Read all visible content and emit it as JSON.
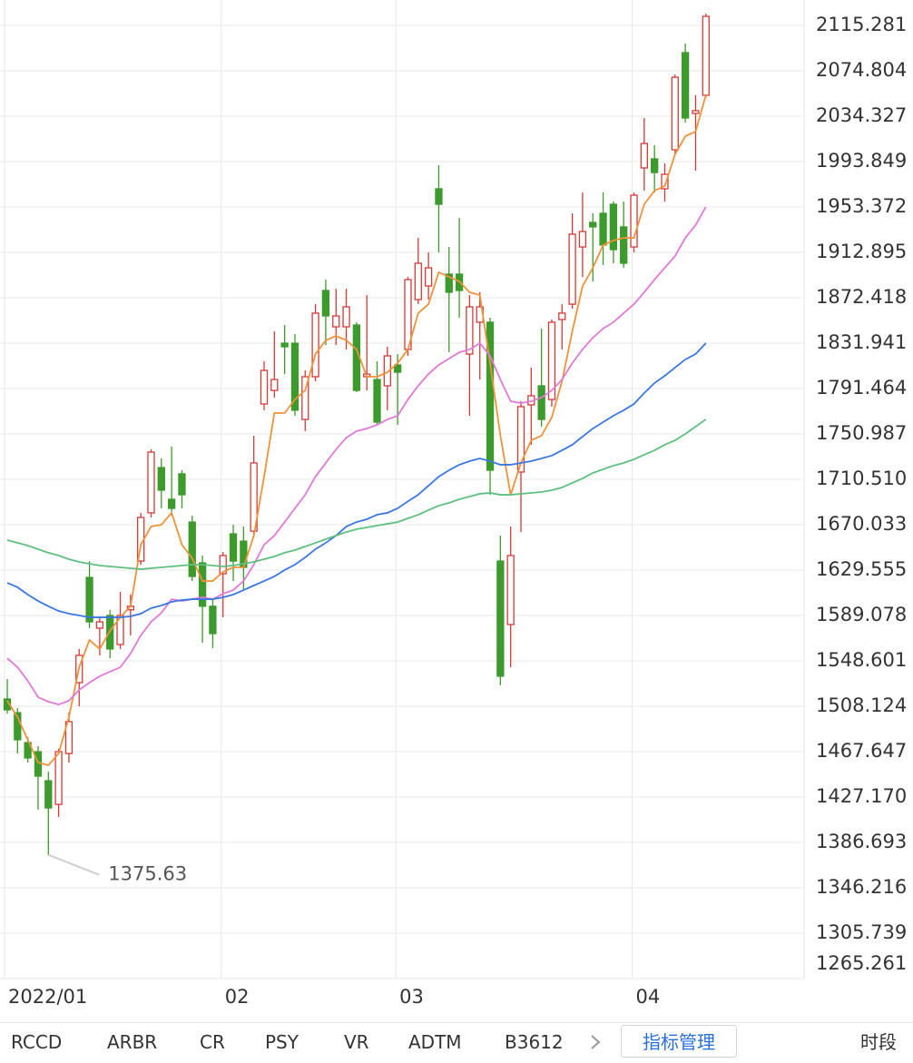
{
  "chart_data": {
    "type": "candlestick",
    "categories": [
      "2022/01",
      null,
      null,
      null,
      null,
      null,
      null,
      null,
      null,
      null,
      null,
      null,
      null,
      null,
      null,
      null,
      null,
      null,
      null,
      null,
      null,
      "02",
      null,
      null,
      null,
      null,
      null,
      null,
      null,
      null,
      null,
      null,
      null,
      null,
      null,
      null,
      null,
      null,
      "03",
      null,
      null,
      null,
      null,
      null,
      null,
      null,
      null,
      null,
      null,
      null,
      null,
      null,
      null,
      null,
      null,
      null,
      null,
      null,
      null,
      null,
      null,
      "04",
      null,
      null,
      null,
      null,
      null,
      null,
      null
    ],
    "open": [
      1514.6,
      1502.4,
      1475.7,
      1467.6,
      1441.7,
      1420.6,
      1466.0,
      1529.2,
      1623.0,
      1577.8,
      1589.1,
      1563.2,
      1594.1,
      1637.6,
      1680.6,
      1721.0,
      1692.7,
      1715.4,
      1672.4,
      1636.0,
      1597.3,
      1626.3,
      1661.9,
      1655.4,
      1664.3,
      1777.7,
      1789.8,
      1831.9,
      1831.9,
      1763.9,
      1802.0,
      1878.9,
      1846.5,
      1846.5,
      1848.1,
      1802.0,
      1799.5,
      1793.9,
      1812.5,
      1826.3,
      1870.8,
      1882.9,
      1969.6,
      1893.5,
      1893.5,
      1822.2,
      1850.6,
      1850.6,
      1637.6,
      1581.0,
      1717.0,
      1776.9,
      1793.9,
      1781.7,
      1853.0,
      1866.7,
      1917.7,
      1939.6,
      1947.7,
      1955.8,
      1935.6,
      1917.7,
      1988.2,
      1996.3,
      1969.6,
      2004.4,
      2091.0,
      2036.8,
      2053.0
    ],
    "high": [
      1532.4,
      1506.5,
      1480.6,
      1472.5,
      1449.8,
      1470.1,
      1502.4,
      1559.2,
      1637.6,
      1587.4,
      1594.1,
      1610.1,
      1607.7,
      1680.6,
      1737.2,
      1729.2,
      1739.7,
      1718.6,
      1678.1,
      1642.5,
      1603.6,
      1645.8,
      1670.0,
      1668.4,
      1749.4,
      1815.7,
      1842.5,
      1848.1,
      1840.0,
      1807.6,
      1866.7,
      1888.6,
      1880.5,
      1880.5,
      1850.6,
      1874.8,
      1815.7,
      1828.7,
      1822.2,
      1891.0,
      1925.8,
      1912.9,
      1990.6,
      1917.7,
      1943.6,
      1874.8,
      1877.3,
      1854.6,
      1660.3,
      1668.4,
      1780.1,
      1810.1,
      1844.9,
      1853.0,
      1866.7,
      1947.7,
      1966.3,
      1947.7,
      1966.3,
      1958.2,
      1958.2,
      1966.3,
      2032.7,
      2008.4,
      1992.2,
      2071.6,
      2099.1,
      2053.0,
      2125.8
    ],
    "low": [
      1501.6,
      1466.0,
      1457.9,
      1415.9,
      1375.63,
      1409.4,
      1457.9,
      1508.1,
      1577.8,
      1553.5,
      1551.0,
      1559.2,
      1571.3,
      1634.4,
      1676.5,
      1684.6,
      1678.1,
      1684.6,
      1619.8,
      1564.8,
      1560.0,
      1587.4,
      1619.8,
      1611.7,
      1658.7,
      1772.1,
      1783.4,
      1804.4,
      1767.2,
      1753.4,
      1797.9,
      1830.3,
      1830.3,
      1826.3,
      1788.2,
      1789.8,
      1759.1,
      1772.1,
      1759.1,
      1820.6,
      1866.7,
      1870.8,
      1912.9,
      1823.8,
      1854.6,
      1767.2,
      1799.5,
      1696.7,
      1526.8,
      1542.9,
      1663.5,
      1741.3,
      1757.5,
      1775.3,
      1826.3,
      1862.7,
      1891.0,
      1887.0,
      1901.6,
      1903.2,
      1899.1,
      1912.9,
      1968.0,
      1966.3,
      1958.2,
      2000.3,
      2028.7,
      1985.7,
      2050.5
    ],
    "close": [
      1504.9,
      1478.2,
      1462.0,
      1445.8,
      1417.4,
      1467.6,
      1494.4,
      1553.5,
      1583.4,
      1583.4,
      1559.2,
      1589.1,
      1597.3,
      1676.5,
      1734.8,
      1700.8,
      1684.6,
      1696.7,
      1623.9,
      1597.3,
      1572.9,
      1642.5,
      1637.6,
      1632.0,
      1725.1,
      1807.6,
      1799.5,
      1828.7,
      1772.1,
      1802.0,
      1858.7,
      1856.2,
      1856.2,
      1864.3,
      1789.8,
      1804.4,
      1761.5,
      1820.6,
      1806.0,
      1888.6,
      1903.2,
      1899.1,
      1955.8,
      1877.3,
      1878.9,
      1864.3,
      1864.3,
      1718.6,
      1534.9,
      1642.5,
      1775.3,
      1785.0,
      1763.9,
      1850.6,
      1858.7,
      1929.1,
      1931.5,
      1935.6,
      1919.4,
      1915.3,
      1903.2,
      1963.9,
      2010.0,
      1984.1,
      1982.5,
      2069.1,
      2032.7,
      2039.2,
      2123.4
    ],
    "up_color": "#d23a3a",
    "down_color": "#3d9a2c",
    "series": [
      {
        "color": "#f0923a",
        "values": [
          1513.0,
          1498.4,
          1478.2,
          1457.9,
          1455.5,
          1466.0,
          1498.4,
          1542.9,
          1567.2,
          1559.2,
          1575.3,
          1587.4,
          1597.3,
          1652.2,
          1668.4,
          1670.0,
          1680.6,
          1652.2,
          1640.1,
          1619.8,
          1619.8,
          1627.9,
          1632.0,
          1632.0,
          1660.3,
          1712.9,
          1769.6,
          1769.6,
          1781.7,
          1789.8,
          1822.2,
          1834.4,
          1838.4,
          1834.4,
          1826.3,
          1802.0,
          1802.0,
          1806.0,
          1814.1,
          1826.3,
          1858.7,
          1866.7,
          1895.1,
          1891.0,
          1887.0,
          1877.3,
          1874.8,
          1814.1,
          1749.4,
          1696.7,
          1725.1,
          1745.3,
          1749.4,
          1765.6,
          1797.9,
          1842.5,
          1882.9,
          1899.1,
          1919.4,
          1923.4,
          1925.8,
          1925.8,
          1955.8,
          1967.9,
          1972.0,
          2000.3,
          2016.5,
          2020.6,
          2053.0
        ]
      },
      {
        "color": "#e07ad8",
        "values": [
          1551.0,
          1542.9,
          1530.8,
          1516.2,
          1512.2,
          1509.7,
          1513.0,
          1522.7,
          1529.2,
          1534.9,
          1538.9,
          1542.9,
          1555.1,
          1571.3,
          1583.4,
          1591.5,
          1603.6,
          1602.0,
          1603.6,
          1605.3,
          1603.6,
          1608.5,
          1611.7,
          1619.8,
          1634.4,
          1652.2,
          1660.3,
          1672.4,
          1684.6,
          1696.7,
          1712.9,
          1725.1,
          1737.2,
          1747.7,
          1753.4,
          1755.8,
          1759.1,
          1763.9,
          1767.2,
          1781.7,
          1793.9,
          1804.4,
          1812.5,
          1818.2,
          1823.8,
          1826.3,
          1831.9,
          1820.6,
          1799.5,
          1780.1,
          1778.5,
          1780.1,
          1783.4,
          1789.8,
          1799.5,
          1814.1,
          1826.3,
          1836.8,
          1844.9,
          1850.6,
          1858.7,
          1866.7,
          1877.3,
          1888.6,
          1899.1,
          1909.6,
          1925.8,
          1937.2,
          1953.4
        ]
      },
      {
        "color": "#3a78e0",
        "values": [
          1618.2,
          1614.2,
          1607.7,
          1602.0,
          1597.3,
          1593.1,
          1590.7,
          1589.1,
          1587.4,
          1587.4,
          1587.4,
          1587.4,
          1588.3,
          1590.7,
          1595.6,
          1598.0,
          1601.2,
          1602.8,
          1603.6,
          1603.6,
          1603.6,
          1605.3,
          1607.7,
          1611.7,
          1615.8,
          1619.8,
          1623.9,
          1629.6,
          1634.4,
          1640.9,
          1648.2,
          1653.8,
          1660.3,
          1668.4,
          1672.4,
          1674.9,
          1678.9,
          1680.6,
          1684.6,
          1690.9,
          1696.7,
          1704.8,
          1712.9,
          1718.6,
          1723.5,
          1726.7,
          1729.1,
          1726.7,
          1723.5,
          1723.5,
          1725.1,
          1726.7,
          1729.1,
          1731.6,
          1736.4,
          1741.3,
          1748.6,
          1755.8,
          1761.5,
          1767.2,
          1772.1,
          1777.7,
          1787.4,
          1796.3,
          1802.8,
          1810.1,
          1817.4,
          1822.2,
          1831.9
        ]
      },
      {
        "color": "#5fbf7e",
        "values": [
          1656.3,
          1653.8,
          1651.4,
          1648.2,
          1645.0,
          1642.5,
          1639.3,
          1636.8,
          1635.2,
          1633.6,
          1632.8,
          1632.0,
          1631.2,
          1630.4,
          1631.2,
          1632.0,
          1632.8,
          1633.6,
          1634.4,
          1634.4,
          1633.6,
          1632.8,
          1633.6,
          1635.2,
          1636.8,
          1639.3,
          1641.7,
          1645.0,
          1647.4,
          1650.6,
          1653.8,
          1657.1,
          1660.3,
          1663.5,
          1666.0,
          1667.6,
          1669.2,
          1670.8,
          1672.4,
          1675.7,
          1678.9,
          1683.0,
          1687.0,
          1689.5,
          1692.7,
          1695.1,
          1697.6,
          1698.4,
          1696.7,
          1696.7,
          1697.6,
          1698.4,
          1699.2,
          1700.8,
          1703.2,
          1707.3,
          1711.3,
          1716.2,
          1719.4,
          1722.7,
          1725.1,
          1728.3,
          1732.4,
          1736.4,
          1741.3,
          1745.3,
          1751.0,
          1757.5,
          1764.0
        ]
      }
    ],
    "ylim": [
      1265.261,
      2137.95
    ],
    "yticks": [
      2115.281,
      2074.804,
      2034.327,
      1993.849,
      1953.372,
      1912.895,
      1872.418,
      1831.941,
      1791.464,
      1750.987,
      {
        "value": 1710.51,
        "label": "1710.510"
      },
      1670.033,
      1629.555,
      1589.078,
      1548.601,
      1508.124,
      1467.647,
      {
        "value": 1427.17,
        "label": "1427.170"
      },
      1386.693,
      1346.216,
      1305.739,
      1265.261
    ],
    "grid": true
  },
  "tabs": [
    "RCCD",
    "ARBR",
    "CR",
    "PSY",
    "VR",
    "ADTM",
    "B3612"
  ],
  "manage": "指标管理",
  "period": "时段"
}
